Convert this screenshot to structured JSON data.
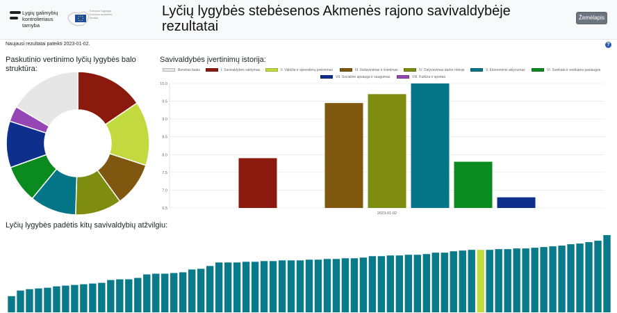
{
  "header": {
    "logo_text": "Lygių galimybių kontrolieriaus tarnyba",
    "eu_text": "Europos Sąjunga Europos socialinis fondas",
    "title": "Lyčių lygybės stebėsenos Akmenės rajono savivaldybėje rezultatai",
    "map_button": "Žemėlapis",
    "help_icon": "question-circle-icon"
  },
  "updated_text": "Naujausi rezultatai pateikti 2023-01-02.",
  "sections": {
    "left_title": "Paskutinio vertinimo lyčių lygybės balo struktūra:",
    "right_title": "Savivaldybės įvertinimų istorija:",
    "bottom_title": "Lyčių lygybės padėtis kitų savivaldybių atžvilgiu:"
  },
  "colors": {
    "bendras": "#e6e6e6",
    "c1": "#8b1a0e",
    "c2": "#c2d940",
    "c3": "#7f570e",
    "c4": "#7e8c10",
    "c5": "#047586",
    "c6": "#0b8b1f",
    "c7": "#0e2f8c",
    "c8": "#9646b4",
    "ranking": "#087a8a",
    "ranking_highlight": "#c2d940"
  },
  "legend": [
    {
      "label": "Bendras balas",
      "color": "#e6e6e6"
    },
    {
      "label": "I. Savivaldybės valdymas",
      "color": "#8b1a0e"
    },
    {
      "label": "II. Valdžia ir sprendimų priėmimas",
      "color": "#c2d940"
    },
    {
      "label": "III. Išsilavinimas ir švietimas",
      "color": "#7f570e"
    },
    {
      "label": "IV. Dalyvavimas darbo rinkoje",
      "color": "#7e8c10"
    },
    {
      "label": "V. Ekonominis aktyvumas",
      "color": "#047586"
    },
    {
      "label": "VI. Sveikata ir sveikatos paslaugos",
      "color": "#0b8b1f"
    },
    {
      "label": "VII. Socialinė apsauga ir saugumas",
      "color": "#0e2f8c"
    },
    {
      "label": "VIII. Kultūra ir sportas",
      "color": "#9646b4"
    }
  ],
  "chart_data": [
    {
      "type": "pie",
      "variant": "doughnut",
      "categories": [
        "I. Savivaldybės valdymas",
        "II. Valdžia ir sprendimų priėmimas",
        "III. Išsilavinimas ir švietimas",
        "IV. Dalyvavimas darbo rinkoje",
        "V. Ekonominis aktyvumas",
        "VI. Sveikata ir sveikatos paslaugos",
        "VII. Socialinė apsauga ir saugumas",
        "VIII. Kultūra ir sportas",
        "Bendras balas"
      ],
      "values": [
        15.5,
        14.5,
        10,
        10.5,
        10.5,
        8.5,
        10.5,
        3.5,
        16.5
      ],
      "colors": [
        "#8b1a0e",
        "#c2d940",
        "#7f570e",
        "#7e8c10",
        "#047586",
        "#0b8b1f",
        "#0e2f8c",
        "#9646b4",
        "#e6e6e6"
      ]
    },
    {
      "type": "bar",
      "categories": [
        "2023-01-02"
      ],
      "series": [
        {
          "name": "Bendras balas",
          "values": [
            null
          ]
        },
        {
          "name": "I. Savivaldybės valdymas",
          "values": [
            7.9
          ]
        },
        {
          "name": "II. Valdžia ir sprendimų priėmimas",
          "values": [
            null
          ]
        },
        {
          "name": "III. Išsilavinimas ir švietimas",
          "values": [
            9.45
          ]
        },
        {
          "name": "IV. Dalyvavimas darbo rinkoje",
          "values": [
            9.7
          ]
        },
        {
          "name": "V. Ekonominis aktyvumas",
          "values": [
            10.0
          ]
        },
        {
          "name": "VI. Sveikata ir sveikatos paslaugos",
          "values": [
            7.8
          ]
        },
        {
          "name": "VII. Socialinė apsauga ir saugumas",
          "values": [
            6.8
          ]
        },
        {
          "name": "VIII. Kultūra ir sportas",
          "values": [
            null
          ]
        }
      ],
      "ylim": [
        6.5,
        10.0
      ],
      "yticks": [
        "10.0",
        "9.5",
        "9.0",
        "8.5",
        "8.0",
        "7.5",
        "7.0",
        "6.5"
      ],
      "xlabel": "",
      "ylabel": "",
      "grid": true,
      "legend": "top"
    },
    {
      "type": "bar",
      "values": [
        2.3,
        3.1,
        3.3,
        3.4,
        3.5,
        3.7,
        3.8,
        3.9,
        4.0,
        4.1,
        4.2,
        4.6,
        4.7,
        4.7,
        4.9,
        5.4,
        5.5,
        5.5,
        5.6,
        5.7,
        6.1,
        6.2,
        6.6,
        7.1,
        7.1,
        7.1,
        7.2,
        7.2,
        7.3,
        7.3,
        7.4,
        7.4,
        7.4,
        7.5,
        7.5,
        7.6,
        7.6,
        7.7,
        7.7,
        7.8,
        8.0,
        8.0,
        8.1,
        8.1,
        8.2,
        8.2,
        8.3,
        8.5,
        8.5,
        8.7,
        8.8,
        8.9,
        8.9,
        8.9,
        9.0,
        9.0,
        9.1,
        9.1,
        9.2,
        9.3,
        9.4,
        9.5,
        9.7,
        9.8,
        10.0,
        10.2,
        11.0
      ],
      "highlight_index": 52,
      "ylim": [
        0,
        11.0
      ],
      "grid": false
    }
  ]
}
